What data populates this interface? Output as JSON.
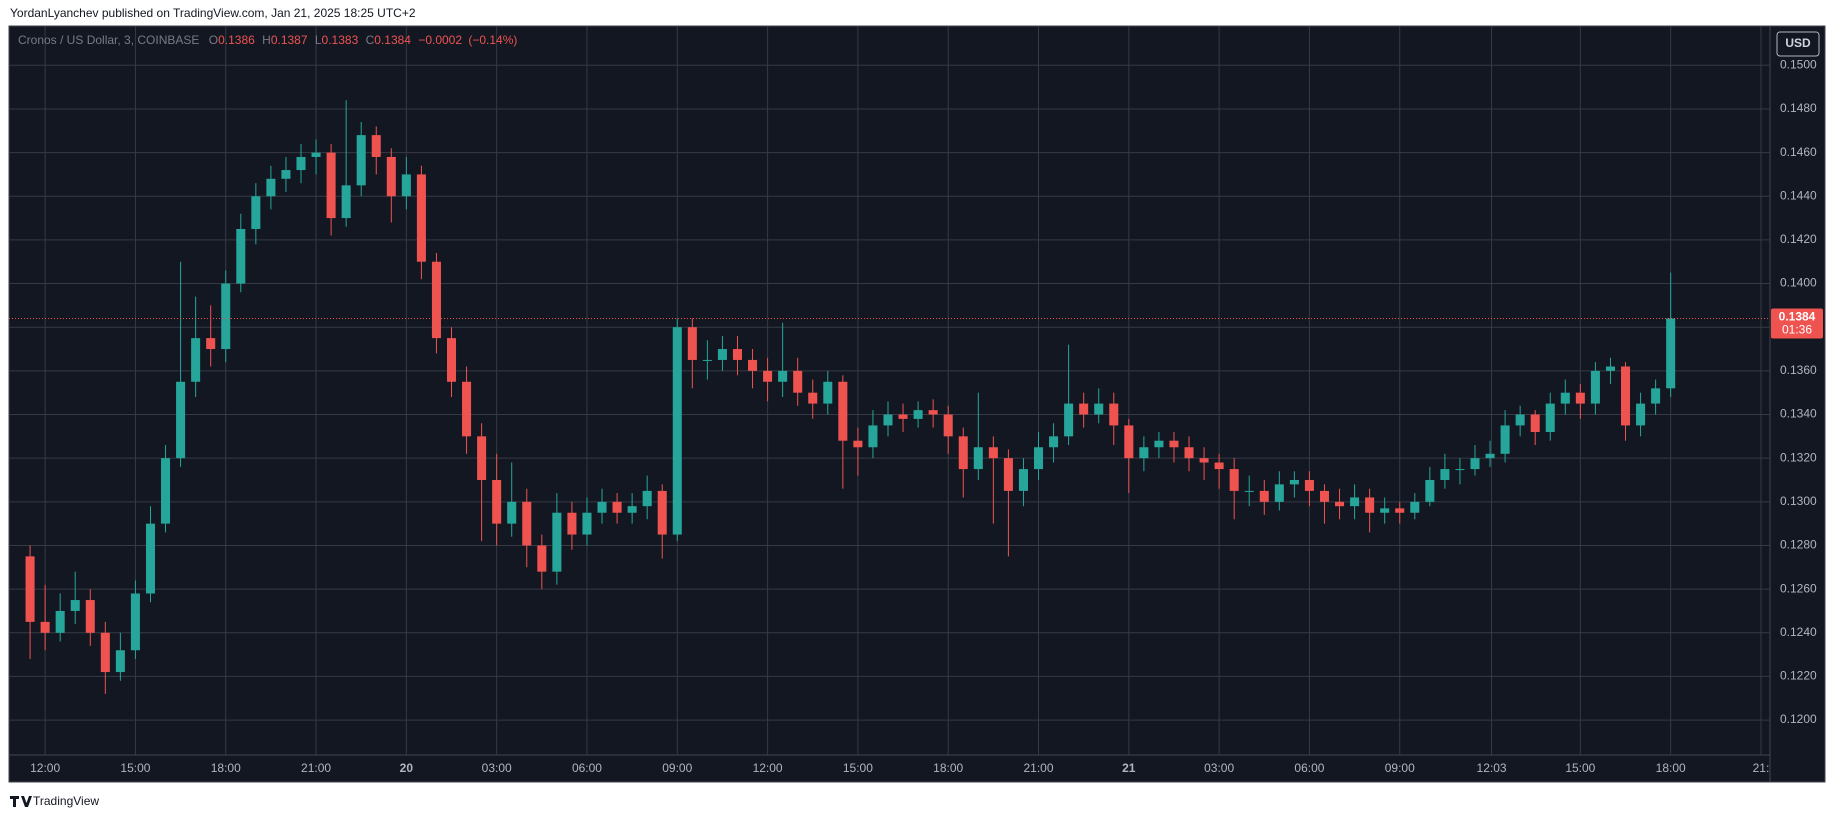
{
  "header": "YordanLyanchev published on TradingView.com, Jan 21, 2025 18:25 UTC+2",
  "footer": "TradingView",
  "chart_data": {
    "type": "candlestick",
    "legend": {
      "symbol": "Cronos / US Dollar, 3, COINBASE",
      "o_label": "O",
      "open": 0.1386,
      "h_label": "H",
      "high": 0.1387,
      "l_label": "L",
      "low": 0.1383,
      "c_label": "C",
      "close": 0.1384,
      "change": {
        "value": -0.0002,
        "label": "−0.0002"
      },
      "change_pct": {
        "value": -0.14,
        "label": "(−0.14%)"
      }
    },
    "currency": "USD",
    "last_price": 0.1384,
    "countdown": "01:36",
    "up_color": "#26a69a",
    "down_color": "#ef5350",
    "grid": true,
    "xlim": [
      -1.2,
      57.3
    ],
    "xticks": [
      {
        "value": 0,
        "label": "12:00"
      },
      {
        "value": 3,
        "label": "15:00"
      },
      {
        "value": 6,
        "label": "18:00"
      },
      {
        "value": 9,
        "label": "21:00"
      },
      {
        "value": 12,
        "label": "20"
      },
      {
        "value": 15,
        "label": "03:00"
      },
      {
        "value": 18,
        "label": "06:00"
      },
      {
        "value": 21,
        "label": "09:00"
      },
      {
        "value": 24,
        "label": "12:00"
      },
      {
        "value": 27,
        "label": "15:00"
      },
      {
        "value": 30,
        "label": "18:00"
      },
      {
        "value": 33,
        "label": "21:00"
      },
      {
        "value": 36,
        "label": "21"
      },
      {
        "value": 39,
        "label": "03:00"
      },
      {
        "value": 42,
        "label": "06:00"
      },
      {
        "value": 45,
        "label": "09:00"
      },
      {
        "value": 48.05,
        "label": "12:03"
      },
      {
        "value": 51,
        "label": "15:00"
      },
      {
        "value": 54,
        "label": "18:00"
      },
      {
        "value": 57,
        "label": "21:"
      }
    ],
    "ylim": [
      0.1184,
      0.1518
    ],
    "yticks": [
      {
        "value": 0.12,
        "label": "0.1200"
      },
      {
        "value": 0.122,
        "label": "0.1220"
      },
      {
        "value": 0.124,
        "label": "0.1240"
      },
      {
        "value": 0.126,
        "label": "0.1260"
      },
      {
        "value": 0.128,
        "label": "0.1280"
      },
      {
        "value": 0.13,
        "label": "0.1300"
      },
      {
        "value": 0.132,
        "label": "0.1320"
      },
      {
        "value": 0.134,
        "label": "0.1340"
      },
      {
        "value": 0.136,
        "label": "0.1360"
      },
      {
        "value": 0.138,
        "label": "0.1380"
      },
      {
        "value": 0.14,
        "label": "0.1400"
      },
      {
        "value": 0.142,
        "label": "0.1420"
      },
      {
        "value": 0.144,
        "label": "0.1440"
      },
      {
        "value": 0.146,
        "label": "0.1460"
      },
      {
        "value": 0.148,
        "label": "0.1480"
      },
      {
        "value": 0.15,
        "label": "0.1500"
      }
    ],
    "x": [
      -0.5,
      0,
      0.5,
      1,
      1.5,
      2,
      2.5,
      3,
      3.5,
      4,
      4.5,
      5,
      5.5,
      6,
      6.5,
      7,
      7.5,
      8,
      8.5,
      9,
      9.5,
      10,
      10.5,
      11,
      11.5,
      12,
      12.5,
      13,
      13.5,
      14,
      14.5,
      15,
      15.5,
      16,
      16.5,
      17,
      17.5,
      18,
      18.5,
      19,
      19.5,
      20,
      20.5,
      21,
      21.5,
      22,
      22.5,
      23,
      23.5,
      24,
      24.5,
      25,
      25.5,
      26,
      26.5,
      27,
      27.5,
      28,
      28.5,
      29,
      29.5,
      30,
      30.5,
      31,
      31.5,
      32,
      32.5,
      33,
      33.5,
      34,
      34.5,
      35,
      35.5,
      36,
      36.5,
      37,
      37.5,
      38,
      38.5,
      39,
      39.5,
      40,
      40.5,
      41,
      41.5,
      42,
      42.5,
      43,
      43.5,
      44,
      44.5,
      45,
      45.5,
      46,
      46.5,
      47,
      47.5,
      48,
      48.5,
      49,
      49.5,
      50,
      50.5,
      51,
      51.5,
      52,
      52.5,
      53,
      53.5,
      54
    ],
    "open": [
      0.1275,
      0.1245,
      0.124,
      0.125,
      0.1255,
      0.124,
      0.1222,
      0.1232,
      0.1258,
      0.129,
      0.132,
      0.1355,
      0.1375,
      0.137,
      0.14,
      0.1425,
      0.144,
      0.1448,
      0.1452,
      0.1458,
      0.146,
      0.143,
      0.1445,
      0.1468,
      0.1458,
      0.144,
      0.145,
      0.141,
      0.1375,
      0.1355,
      0.133,
      0.131,
      0.129,
      0.13,
      0.128,
      0.1268,
      0.1295,
      0.1285,
      0.1295,
      0.13,
      0.1295,
      0.1298,
      0.1305,
      0.1285,
      0.138,
      0.1365,
      0.1365,
      0.137,
      0.1365,
      0.136,
      0.1355,
      0.136,
      0.135,
      0.1345,
      0.1355,
      0.1328,
      0.1325,
      0.1335,
      0.134,
      0.1338,
      0.1342,
      0.134,
      0.133,
      0.1315,
      0.1325,
      0.132,
      0.1305,
      0.1315,
      0.1325,
      0.133,
      0.1345,
      0.134,
      0.1345,
      0.1335,
      0.132,
      0.1325,
      0.1328,
      0.1325,
      0.132,
      0.1318,
      0.1315,
      0.1305,
      0.1305,
      0.13,
      0.1308,
      0.131,
      0.1305,
      0.13,
      0.1298,
      0.1302,
      0.1295,
      0.1297,
      0.1295,
      0.13,
      0.131,
      0.1315,
      0.1315,
      0.132,
      0.1322,
      0.1335,
      0.134,
      0.1332,
      0.1345,
      0.135,
      0.1345,
      0.136,
      0.1362,
      0.1335,
      0.1345,
      0.1352
    ],
    "high": [
      0.128,
      0.1262,
      0.1258,
      0.1268,
      0.126,
      0.1245,
      0.124,
      0.1264,
      0.1298,
      0.1326,
      0.141,
      0.1394,
      0.139,
      0.1406,
      0.1432,
      0.1446,
      0.1454,
      0.1458,
      0.1464,
      0.1466,
      0.1464,
      0.1484,
      0.1474,
      0.1472,
      0.1462,
      0.1458,
      0.1454,
      0.1414,
      0.138,
      0.1362,
      0.1336,
      0.1322,
      0.1318,
      0.1306,
      0.1285,
      0.1304,
      0.13,
      0.1302,
      0.1306,
      0.1304,
      0.1304,
      0.1312,
      0.1308,
      0.1384,
      0.1384,
      0.1374,
      0.1376,
      0.1376,
      0.137,
      0.1366,
      0.1382,
      0.1366,
      0.1356,
      0.136,
      0.1358,
      0.1334,
      0.1342,
      0.1346,
      0.1345,
      0.1346,
      0.1347,
      0.1344,
      0.1334,
      0.135,
      0.133,
      0.1324,
      0.132,
      0.1332,
      0.1336,
      0.1372,
      0.135,
      0.1352,
      0.135,
      0.1338,
      0.133,
      0.1332,
      0.1332,
      0.133,
      0.1325,
      0.1322,
      0.132,
      0.1312,
      0.131,
      0.1314,
      0.1314,
      0.1314,
      0.1308,
      0.1306,
      0.1308,
      0.1306,
      0.1302,
      0.13,
      0.1304,
      0.1316,
      0.1322,
      0.132,
      0.1326,
      0.1328,
      0.1342,
      0.1344,
      0.1342,
      0.135,
      0.1356,
      0.1354,
      0.1364,
      0.1366,
      0.1364,
      0.135,
      0.1356,
      0.1405
    ],
    "low": [
      0.1228,
      0.1232,
      0.1236,
      0.1244,
      0.1234,
      0.1212,
      0.1218,
      0.1228,
      0.1254,
      0.1286,
      0.1316,
      0.1348,
      0.1362,
      0.1364,
      0.1396,
      0.1418,
      0.1434,
      0.1442,
      0.1446,
      0.145,
      0.1422,
      0.1426,
      0.144,
      0.145,
      0.1428,
      0.1434,
      0.1402,
      0.1368,
      0.1348,
      0.1322,
      0.1282,
      0.128,
      0.1284,
      0.127,
      0.126,
      0.1262,
      0.1278,
      0.128,
      0.129,
      0.129,
      0.129,
      0.1292,
      0.1274,
      0.1282,
      0.1352,
      0.1356,
      0.136,
      0.1358,
      0.1352,
      0.1346,
      0.1348,
      0.1344,
      0.1338,
      0.134,
      0.1306,
      0.1312,
      0.132,
      0.133,
      0.1332,
      0.1334,
      0.1334,
      0.1322,
      0.1302,
      0.131,
      0.129,
      0.1275,
      0.1298,
      0.131,
      0.1318,
      0.1326,
      0.1334,
      0.1336,
      0.1326,
      0.1304,
      0.1314,
      0.132,
      0.1318,
      0.1314,
      0.131,
      0.1306,
      0.1292,
      0.1298,
      0.1294,
      0.1296,
      0.1302,
      0.1298,
      0.129,
      0.1292,
      0.1292,
      0.1286,
      0.129,
      0.129,
      0.1292,
      0.1298,
      0.1306,
      0.1308,
      0.1312,
      0.1316,
      0.1318,
      0.133,
      0.1326,
      0.1328,
      0.134,
      0.1338,
      0.134,
      0.1354,
      0.1328,
      0.133,
      0.134,
      0.1348
    ],
    "close": [
      0.1245,
      0.124,
      0.125,
      0.1255,
      0.124,
      0.1222,
      0.1232,
      0.1258,
      0.129,
      0.132,
      0.1355,
      0.1375,
      0.137,
      0.14,
      0.1425,
      0.144,
      0.1448,
      0.1452,
      0.1458,
      0.146,
      0.143,
      0.1445,
      0.1468,
      0.1458,
      0.144,
      0.145,
      0.141,
      0.1375,
      0.1355,
      0.133,
      0.131,
      0.129,
      0.13,
      0.128,
      0.1268,
      0.1295,
      0.1285,
      0.1295,
      0.13,
      0.1295,
      0.1298,
      0.1305,
      0.1285,
      0.138,
      0.1365,
      0.1365,
      0.137,
      0.1365,
      0.136,
      0.1355,
      0.136,
      0.135,
      0.1345,
      0.1355,
      0.1328,
      0.1325,
      0.1335,
      0.134,
      0.1338,
      0.1342,
      0.134,
      0.133,
      0.1315,
      0.1325,
      0.132,
      0.1305,
      0.1315,
      0.1325,
      0.133,
      0.1345,
      0.134,
      0.1345,
      0.1335,
      0.132,
      0.1325,
      0.1328,
      0.1325,
      0.132,
      0.1318,
      0.1315,
      0.1305,
      0.1305,
      0.13,
      0.1308,
      0.131,
      0.1305,
      0.13,
      0.1298,
      0.1302,
      0.1295,
      0.1297,
      0.1295,
      0.13,
      0.131,
      0.1315,
      0.1315,
      0.132,
      0.1322,
      0.1335,
      0.134,
      0.1332,
      0.1345,
      0.135,
      0.1345,
      0.136,
      0.1362,
      0.1335,
      0.1345,
      0.1352,
      0.1384
    ]
  }
}
